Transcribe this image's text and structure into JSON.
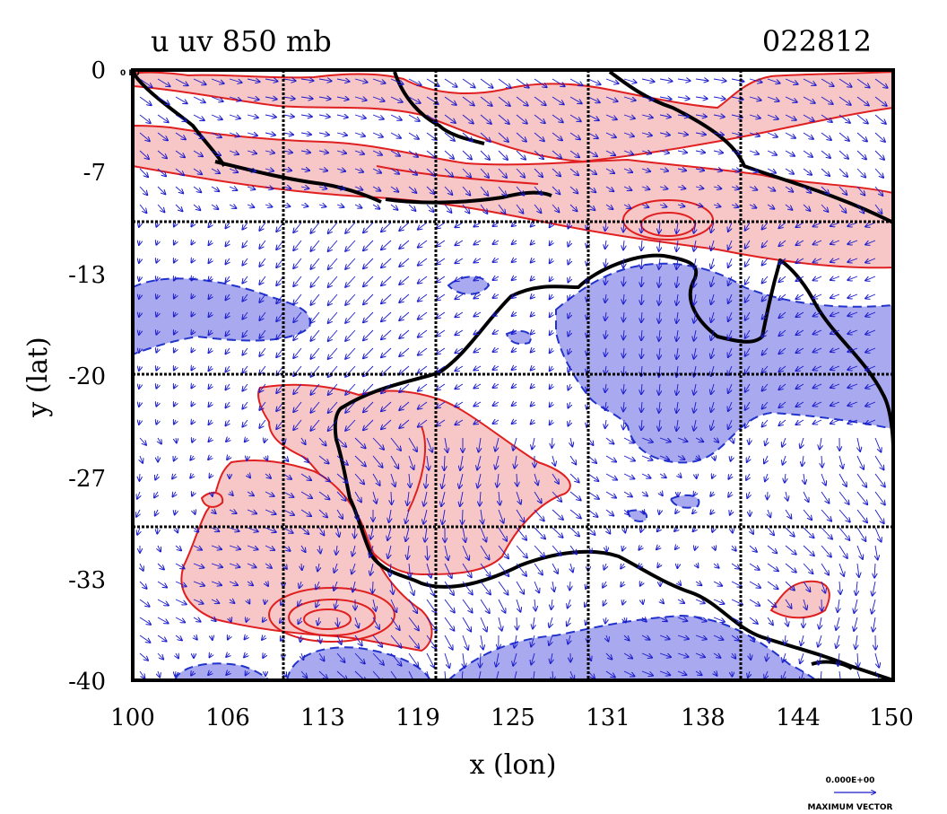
{
  "title": {
    "left": "u uv 850 mb",
    "right": "022812"
  },
  "corner_label": "0 E0",
  "axes": {
    "xlabel": "x (lon)",
    "ylabel": "y (lat)",
    "xticks": [
      "100",
      "106",
      "113",
      "119",
      "125",
      "131",
      "138",
      "144",
      "150"
    ],
    "yticks": [
      "0",
      "-7",
      "-13",
      "-20",
      "-27",
      "-33",
      "-40"
    ],
    "lon_range": [
      100,
      150
    ],
    "lat_range": [
      -40,
      0
    ]
  },
  "reference_vector": {
    "value": "0.000E+00",
    "label": "MAXIMUM VECTOR"
  },
  "colors": {
    "positive_fill": "#f7c6c6",
    "positive_line": "#e02020",
    "negative_fill": "#a9a9f0",
    "negative_line": "#2233cc",
    "vector": "#1a1acc",
    "coast": "#000000"
  }
}
